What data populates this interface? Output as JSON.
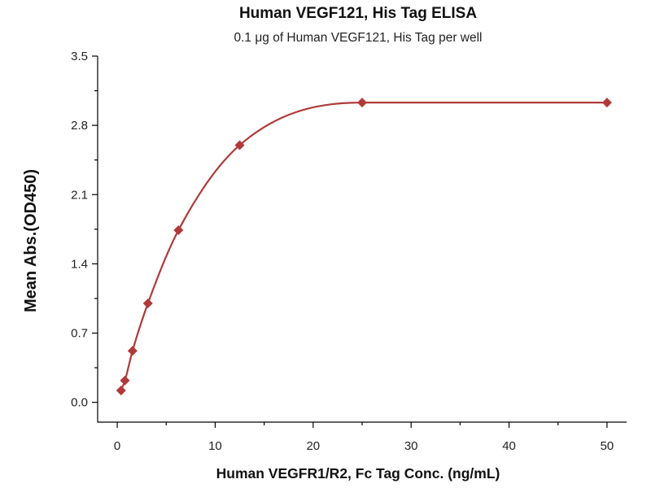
{
  "chart_data": {
    "type": "scatter",
    "title": "Human VEGF121, His Tag ELISA",
    "subtitle": "0.1 μg of Human VEGF121, His Tag per well",
    "xlabel": "Human VEGFR1/R2, Fc Tag Conc. (ng/mL)",
    "ylabel": "Mean Abs.(OD450)",
    "xlim": [
      -2,
      52
    ],
    "ylim": [
      -0.2,
      3.5
    ],
    "xticks": [
      0,
      10,
      20,
      30,
      40,
      50
    ],
    "xtick_labels": [
      "0",
      "10",
      "20",
      "30",
      "40",
      "50"
    ],
    "yticks": [
      0.0,
      0.7,
      1.4,
      2.1,
      2.8,
      3.5
    ],
    "ytick_labels": [
      "0.0",
      "0.7",
      "1.4",
      "2.1",
      "2.8",
      "3.5"
    ],
    "grid": false,
    "colors": {
      "series": "#b03a3a"
    },
    "series": [
      {
        "marker": "diamond",
        "fit_line": true,
        "x": [
          0.39,
          0.78,
          1.56,
          3.13,
          6.25,
          12.5,
          25,
          50
        ],
        "y": [
          0.12,
          0.22,
          0.52,
          1.0,
          1.74,
          2.6,
          3.03,
          3.03
        ]
      }
    ]
  }
}
